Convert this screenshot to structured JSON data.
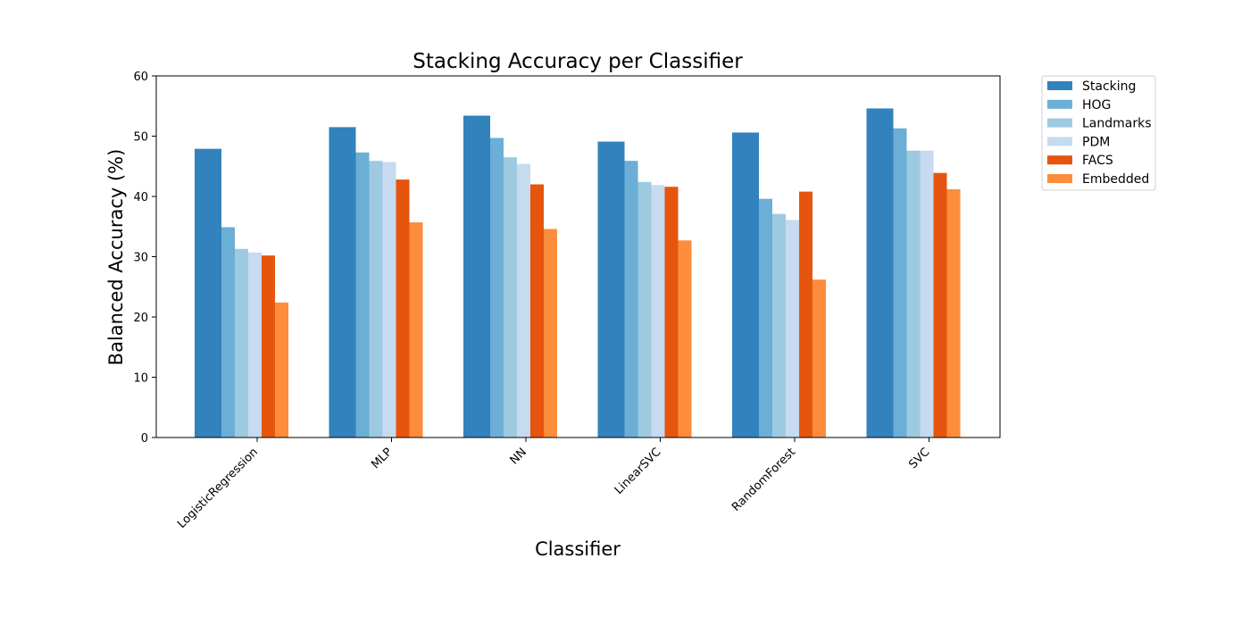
{
  "chart_data": {
    "type": "bar",
    "title": "Stacking Accuracy per Classifier",
    "xlabel": "Classifier",
    "ylabel": "Balanced Accuracy (%)",
    "ylim": [
      0,
      60
    ],
    "yticks": [
      0,
      10,
      20,
      30,
      40,
      50,
      60
    ],
    "grid": false,
    "legend_position": "outside-top-right",
    "categories": [
      "LogisticRegression",
      "MLP",
      "NN",
      "LinearSVC",
      "RandomForest",
      "SVC"
    ],
    "series": [
      {
        "name": "Stacking",
        "color": "#3182bd",
        "values": [
          47.9,
          51.5,
          53.4,
          49.1,
          50.6,
          54.6
        ]
      },
      {
        "name": "HOG",
        "color": "#6baed6",
        "values": [
          34.9,
          47.3,
          49.7,
          45.9,
          39.6,
          51.3
        ]
      },
      {
        "name": "Landmarks",
        "color": "#9ecae1",
        "values": [
          31.3,
          45.9,
          46.5,
          42.4,
          37.1,
          47.6
        ]
      },
      {
        "name": "PDM",
        "color": "#c6dbef",
        "values": [
          30.7,
          45.7,
          45.4,
          41.9,
          36.1,
          47.6
        ]
      },
      {
        "name": "FACS",
        "color": "#e6550d",
        "values": [
          30.2,
          42.8,
          42.0,
          41.6,
          40.8,
          43.9
        ]
      },
      {
        "name": "Embedded",
        "color": "#fd8d3c",
        "values": [
          22.4,
          35.7,
          34.6,
          32.7,
          26.2,
          41.2
        ]
      }
    ]
  }
}
